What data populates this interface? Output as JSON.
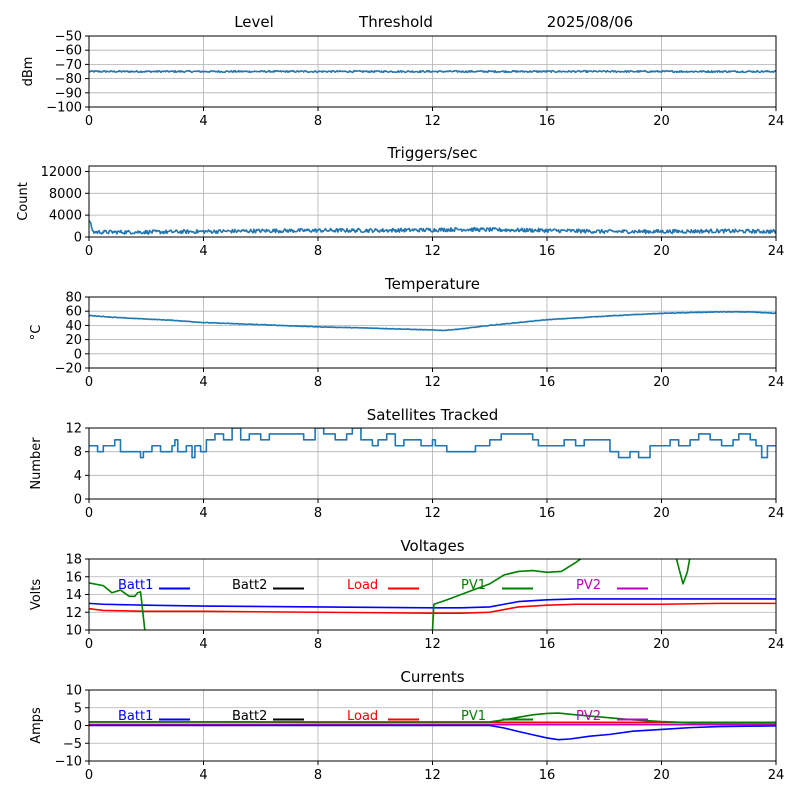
{
  "header": {
    "level_label": "Level",
    "threshold_label": "Threshold",
    "date": "2025/08/06"
  },
  "colors": {
    "default_series": "#1f77b4",
    "grid": "#b0b0b0",
    "Batt1": "#0000ff",
    "Batt2": "#000000",
    "Load": "#ff0000",
    "PV1": "#008000",
    "PV2": "#bf00bf"
  },
  "chart_data": [
    {
      "type": "line",
      "title": "",
      "xlabel": "",
      "ylabel": "dBm",
      "xlim": [
        0,
        24
      ],
      "ylim": [
        -100,
        -50
      ],
      "x_ticks": [
        0,
        4,
        8,
        12,
        16,
        20,
        24
      ],
      "y_ticks": [
        -100,
        -90,
        -80,
        -70,
        -60,
        -50
      ],
      "grid": true,
      "series": [
        {
          "noise": 0.6,
          "points": [
            [
              0,
              -75
            ],
            [
              4,
              -75
            ],
            [
              8,
              -75
            ],
            [
              12,
              -75
            ],
            [
              16,
              -75
            ],
            [
              20,
              -75
            ],
            [
              24,
              -75
            ]
          ]
        }
      ]
    },
    {
      "type": "line",
      "title": "Triggers/sec",
      "xlabel": "",
      "ylabel": "Count",
      "xlim": [
        0,
        24
      ],
      "ylim": [
        0,
        13000
      ],
      "x_ticks": [
        0,
        4,
        8,
        12,
        16,
        20,
        24
      ],
      "y_ticks": [
        0,
        4000,
        8000,
        12000
      ],
      "grid": true,
      "series": [
        {
          "noise": 350,
          "points": [
            [
              0,
              3200
            ],
            [
              0.15,
              900
            ],
            [
              1,
              900
            ],
            [
              2,
              900
            ],
            [
              4,
              1000
            ],
            [
              5.5,
              1100
            ],
            [
              8,
              1200
            ],
            [
              10,
              1200
            ],
            [
              12,
              1300
            ],
            [
              13,
              1400
            ],
            [
              16,
              1200
            ],
            [
              18,
              1000
            ],
            [
              20,
              1000
            ],
            [
              22,
              1100
            ],
            [
              24,
              1000
            ]
          ]
        }
      ]
    },
    {
      "type": "line",
      "title": "Temperature",
      "xlabel": "",
      "ylabel": "°C",
      "xlim": [
        0,
        24
      ],
      "ylim": [
        -20,
        80
      ],
      "x_ticks": [
        0,
        4,
        8,
        12,
        16,
        20,
        24
      ],
      "y_ticks": [
        -20,
        0,
        20,
        40,
        60,
        80
      ],
      "grid": true,
      "series": [
        {
          "noise": 0.4,
          "points": [
            [
              0,
              54
            ],
            [
              1,
              51
            ],
            [
              2,
              49
            ],
            [
              3,
              47
            ],
            [
              4,
              44
            ],
            [
              6,
              41
            ],
            [
              8,
              38
            ],
            [
              10,
              36
            ],
            [
              12.4,
              33
            ],
            [
              13,
              35
            ],
            [
              14,
              40
            ],
            [
              15,
              44
            ],
            [
              16,
              48
            ],
            [
              18,
              53
            ],
            [
              20,
              57
            ],
            [
              22,
              59
            ],
            [
              23,
              59
            ],
            [
              24,
              57
            ]
          ]
        }
      ]
    },
    {
      "type": "line",
      "title": "Satellites Tracked",
      "xlabel": "",
      "ylabel": "Number",
      "xlim": [
        0,
        24
      ],
      "ylim": [
        0,
        12
      ],
      "x_ticks": [
        0,
        4,
        8,
        12,
        16,
        20,
        24
      ],
      "y_ticks": [
        0,
        4,
        8,
        12
      ],
      "grid": true,
      "step": true,
      "series": [
        {
          "points": [
            [
              0,
              9
            ],
            [
              0.3,
              8
            ],
            [
              0.5,
              9
            ],
            [
              0.8,
              9
            ],
            [
              0.9,
              10
            ],
            [
              1.1,
              8
            ],
            [
              1.8,
              7
            ],
            [
              1.9,
              8
            ],
            [
              2.2,
              9
            ],
            [
              2.5,
              8
            ],
            [
              2.9,
              9
            ],
            [
              3.0,
              10
            ],
            [
              3.1,
              8
            ],
            [
              3.4,
              9
            ],
            [
              3.6,
              7
            ],
            [
              3.7,
              9
            ],
            [
              3.9,
              8
            ],
            [
              4.1,
              10
            ],
            [
              4.4,
              11
            ],
            [
              4.7,
              10
            ],
            [
              5.0,
              12
            ],
            [
              5.3,
              10
            ],
            [
              5.6,
              11
            ],
            [
              6.0,
              10
            ],
            [
              6.3,
              11
            ],
            [
              7.0,
              11
            ],
            [
              7.5,
              10
            ],
            [
              7.9,
              12
            ],
            [
              8.2,
              11
            ],
            [
              8.6,
              10
            ],
            [
              9.0,
              11
            ],
            [
              9.2,
              12
            ],
            [
              9.5,
              10
            ],
            [
              9.9,
              9
            ],
            [
              10.1,
              10
            ],
            [
              10.4,
              11
            ],
            [
              10.7,
              9
            ],
            [
              11.0,
              10
            ],
            [
              11.4,
              10
            ],
            [
              11.6,
              9
            ],
            [
              12.0,
              10
            ],
            [
              12.1,
              9
            ],
            [
              12.5,
              8
            ],
            [
              13.0,
              8
            ],
            [
              13.5,
              9
            ],
            [
              14.0,
              10
            ],
            [
              14.4,
              11
            ],
            [
              15.0,
              11
            ],
            [
              15.5,
              10
            ],
            [
              15.7,
              9
            ],
            [
              16.2,
              9
            ],
            [
              16.6,
              10
            ],
            [
              17.0,
              9
            ],
            [
              17.3,
              10
            ],
            [
              18.0,
              10
            ],
            [
              18.2,
              8
            ],
            [
              18.5,
              7
            ],
            [
              18.9,
              8
            ],
            [
              19.2,
              7
            ],
            [
              19.6,
              9
            ],
            [
              20.0,
              9
            ],
            [
              20.3,
              10
            ],
            [
              20.6,
              9
            ],
            [
              21.0,
              10
            ],
            [
              21.3,
              11
            ],
            [
              21.7,
              10
            ],
            [
              22.1,
              9
            ],
            [
              22.5,
              10
            ],
            [
              22.7,
              11
            ],
            [
              23.1,
              10
            ],
            [
              23.3,
              9
            ],
            [
              23.5,
              7
            ],
            [
              23.7,
              9
            ],
            [
              24.0,
              9
            ]
          ]
        }
      ]
    },
    {
      "type": "line",
      "title": "Voltages",
      "xlabel": "",
      "ylabel": "Volts",
      "xlim": [
        0,
        24
      ],
      "ylim": [
        10,
        18
      ],
      "x_ticks": [
        0,
        4,
        8,
        12,
        16,
        20,
        24
      ],
      "y_ticks": [
        10,
        12,
        14,
        16,
        18
      ],
      "grid": true,
      "legend": [
        "Batt1",
        "Batt2",
        "Load",
        "PV1",
        "PV2"
      ],
      "series": [
        {
          "name": "Batt1",
          "points": [
            [
              0,
              13.0
            ],
            [
              0.5,
              12.9
            ],
            [
              2,
              12.8
            ],
            [
              4,
              12.7
            ],
            [
              8,
              12.6
            ],
            [
              12,
              12.5
            ],
            [
              13,
              12.5
            ],
            [
              14,
              12.6
            ],
            [
              14.5,
              12.9
            ],
            [
              15,
              13.2
            ],
            [
              16,
              13.4
            ],
            [
              17,
              13.5
            ],
            [
              18,
              13.5
            ],
            [
              20,
              13.5
            ],
            [
              22,
              13.5
            ],
            [
              24,
              13.5
            ]
          ]
        },
        {
          "name": "Load",
          "points": [
            [
              0,
              12.4
            ],
            [
              0.5,
              12.2
            ],
            [
              2,
              12.1
            ],
            [
              4,
              12.1
            ],
            [
              8,
              12.0
            ],
            [
              12,
              11.9
            ],
            [
              13,
              11.9
            ],
            [
              14,
              12.0
            ],
            [
              14.5,
              12.3
            ],
            [
              15,
              12.6
            ],
            [
              16,
              12.8
            ],
            [
              17,
              12.9
            ],
            [
              20,
              12.9
            ],
            [
              22,
              13.0
            ],
            [
              24,
              13.0
            ]
          ]
        },
        {
          "name": "PV1",
          "points": [
            [
              0,
              15.3
            ],
            [
              0.5,
              15.0
            ],
            [
              0.8,
              14.2
            ],
            [
              1.1,
              14.5
            ],
            [
              1.4,
              13.8
            ],
            [
              1.6,
              13.8
            ],
            [
              1.7,
              14.2
            ],
            [
              1.8,
              14.3
            ],
            [
              1.95,
              10.0
            ],
            [
              2.0,
              9.0
            ]
          ]
        },
        {
          "name": "PV1",
          "points": [
            [
              11.95,
              9.0
            ],
            [
              12.0,
              10.0
            ],
            [
              12.05,
              12.9
            ],
            [
              12.5,
              13.4
            ],
            [
              13,
              14.0
            ],
            [
              13.5,
              14.6
            ],
            [
              14,
              15.2
            ],
            [
              14.5,
              16.2
            ],
            [
              15,
              16.6
            ],
            [
              15.5,
              16.7
            ],
            [
              16,
              16.5
            ],
            [
              16.5,
              16.6
            ],
            [
              17,
              17.6
            ],
            [
              17.3,
              18.3
            ]
          ]
        },
        {
          "name": "PV1",
          "points": [
            [
              20.5,
              18.3
            ],
            [
              20.75,
              15.2
            ],
            [
              20.9,
              16.5
            ],
            [
              21.0,
              18.3
            ]
          ]
        }
      ]
    },
    {
      "type": "line",
      "title": "Currents",
      "xlabel": "",
      "ylabel": "Amps",
      "xlim": [
        0,
        24
      ],
      "ylim": [
        -10,
        10
      ],
      "x_ticks": [
        0,
        4,
        8,
        12,
        16,
        20,
        24
      ],
      "y_ticks": [
        -10,
        -5,
        0,
        5,
        10
      ],
      "grid": true,
      "legend": [
        "Batt1",
        "Batt2",
        "Load",
        "PV1",
        "PV2"
      ],
      "series": [
        {
          "name": "Load",
          "points": [
            [
              0,
              1.0
            ],
            [
              4,
              1.0
            ],
            [
              8,
              0.9
            ],
            [
              12,
              0.9
            ],
            [
              16,
              0.9
            ],
            [
              20,
              0.9
            ],
            [
              24,
              0.9
            ]
          ]
        },
        {
          "name": "PV2",
          "points": [
            [
              0,
              0.3
            ],
            [
              24,
              0.3
            ]
          ]
        },
        {
          "name": "Batt1",
          "points": [
            [
              0,
              0.0
            ],
            [
              4,
              0.0
            ],
            [
              8,
              0.0
            ],
            [
              12,
              0.0
            ],
            [
              14,
              0.0
            ],
            [
              14.5,
              -0.7
            ],
            [
              15,
              -1.7
            ],
            [
              15.5,
              -2.6
            ],
            [
              16,
              -3.5
            ],
            [
              16.4,
              -4.0
            ],
            [
              16.8,
              -3.8
            ],
            [
              17.5,
              -3.0
            ],
            [
              18.2,
              -2.5
            ],
            [
              19,
              -1.6
            ],
            [
              20,
              -1.1
            ],
            [
              21,
              -0.6
            ],
            [
              22,
              -0.3
            ],
            [
              23,
              -0.2
            ],
            [
              24,
              -0.1
            ]
          ]
        },
        {
          "name": "PV1",
          "points": [
            [
              0,
              1.0
            ],
            [
              8,
              1.0
            ],
            [
              12,
              1.0
            ],
            [
              14,
              1.0
            ],
            [
              14.5,
              1.6
            ],
            [
              15,
              2.3
            ],
            [
              15.5,
              3.0
            ],
            [
              16,
              3.4
            ],
            [
              16.4,
              3.5
            ],
            [
              17,
              3.0
            ],
            [
              18,
              2.3
            ],
            [
              19,
              1.6
            ],
            [
              20,
              1.1
            ],
            [
              21,
              0.8
            ],
            [
              22,
              0.8
            ],
            [
              24,
              0.8
            ]
          ]
        }
      ]
    }
  ]
}
